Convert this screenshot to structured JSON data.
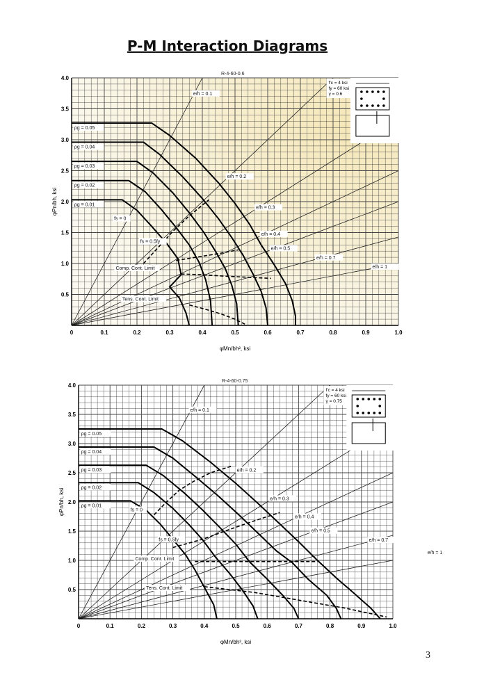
{
  "title": "P-M Interaction Diagrams",
  "page_number": "3",
  "chart_data": [
    {
      "type": "line",
      "title": "R-4-60-0.6",
      "xlabel": "φMn/bh², ksi",
      "ylabel": "φPn/bh, ksi",
      "xlim": [
        0,
        1.0
      ],
      "ylim": [
        0,
        4.0
      ],
      "x_ticks": [
        "0",
        "0.1",
        "0.2",
        "0.3",
        "0.4",
        "0.5",
        "0.6",
        "0.7",
        "0.8",
        "0.9",
        "1.0"
      ],
      "y_ticks": [
        "0.5",
        "1.0",
        "1.5",
        "2.0",
        "2.5",
        "3.0",
        "3.5",
        "4.0"
      ],
      "grid": true,
      "properties": [
        "f'c = 4 ksi",
        "fy = 60 ksi",
        "γ = 0.6"
      ],
      "eccentricity_lines": [
        {
          "label": "e/h = 0.1",
          "ratio": 0.1
        },
        {
          "label": "e/h = 0.2",
          "ratio": 0.2
        },
        {
          "label": "e/h = 0.3",
          "ratio": 0.3
        },
        {
          "label": "e/h = 0.4",
          "ratio": 0.4
        },
        {
          "label": "e/h = 0.5",
          "ratio": 0.5
        },
        {
          "label": "e/h = 0.7",
          "ratio": 0.7
        },
        {
          "label": "e/h = 1",
          "ratio": 1.0
        }
      ],
      "series": [
        {
          "name": "ρg = 0.05",
          "x": [
            0,
            0.245,
            0.3,
            0.38,
            0.45,
            0.5,
            0.545,
            0.58,
            0.62,
            0.655,
            0.675,
            0.685,
            0.685
          ],
          "y": [
            3.27,
            3.27,
            3.07,
            2.7,
            2.3,
            1.97,
            1.63,
            1.3,
            0.98,
            0.67,
            0.4,
            0.15,
            0
          ]
        },
        {
          "name": "ρg = 0.04",
          "x": [
            0,
            0.22,
            0.27,
            0.34,
            0.4,
            0.45,
            0.49,
            0.525,
            0.555,
            0.58,
            0.595,
            0.6
          ],
          "y": [
            2.96,
            2.96,
            2.76,
            2.4,
            2.05,
            1.72,
            1.42,
            1.13,
            0.83,
            0.55,
            0.28,
            0
          ]
        },
        {
          "name": "ρg = 0.03",
          "x": [
            0,
            0.2,
            0.25,
            0.31,
            0.36,
            0.405,
            0.44,
            0.47,
            0.49,
            0.505,
            0.51
          ],
          "y": [
            2.65,
            2.65,
            2.46,
            2.14,
            1.82,
            1.5,
            1.2,
            0.92,
            0.65,
            0.35,
            0
          ]
        },
        {
          "name": "ρg = 0.02",
          "x": [
            0,
            0.175,
            0.225,
            0.275,
            0.32,
            0.36,
            0.39,
            0.41,
            0.425,
            0.43
          ],
          "y": [
            2.34,
            2.34,
            2.16,
            1.87,
            1.58,
            1.3,
            1.02,
            0.74,
            0.4,
            0
          ]
        },
        {
          "name": "ρg = 0.01",
          "x": [
            0,
            0.155,
            0.2,
            0.245,
            0.29,
            0.325,
            0.335,
            0.3,
            0.33,
            0.35,
            0.36
          ],
          "y": [
            2.03,
            2.03,
            1.86,
            1.6,
            1.33,
            1.08,
            0.82,
            0.62,
            0.44,
            0.2,
            0
          ]
        }
      ],
      "dashed_lines": [
        {
          "label": "fs = 0",
          "x": [
            0.22,
            0.265,
            0.31,
            0.36,
            0.42
          ],
          "y": [
            1.0,
            1.26,
            1.52,
            1.77,
            2.03
          ]
        },
        {
          "label": "fs = 0.5fy",
          "x": [
            0.32,
            0.38,
            0.45,
            0.51
          ],
          "y": [
            1.05,
            1.1,
            1.16,
            1.22
          ]
        },
        {
          "label": "Comp. Cont. Limit",
          "x": [
            0.335,
            0.395,
            0.455,
            0.53,
            0.61
          ],
          "y": [
            0.83,
            0.82,
            0.8,
            0.78,
            0.76
          ]
        },
        {
          "label": "Tens. Cont. Limit",
          "x": [
            0.36,
            0.41,
            0.46,
            0.5,
            0.53
          ],
          "y": [
            0.33,
            0.26,
            0.18,
            0.1,
            0.02
          ]
        }
      ],
      "annotations": [
        "fs = 0",
        "fs = 0.5fy",
        "Comp. Cont. Limit",
        "Tens. Cont. Limit"
      ]
    },
    {
      "type": "line",
      "title": "R-4-60-0.75",
      "xlabel": "φMn/bh², ksi",
      "ylabel": "φPn/bh, ksi",
      "xlim": [
        0,
        1.0
      ],
      "ylim": [
        0,
        4.0
      ],
      "x_ticks": [
        "0",
        "0.1",
        "0.2",
        "0.3",
        "0.4",
        "0.5",
        "0.6",
        "0.7",
        "0.8",
        "0.9",
        "1.0"
      ],
      "y_ticks": [
        "0.5",
        "1.0",
        "1.5",
        "2.0",
        "2.5",
        "3.0",
        "3.5",
        "4.0"
      ],
      "grid": true,
      "properties": [
        "f'c = 4 ksi",
        "fy = 60 ksi",
        "γ = 0.75"
      ],
      "eccentricity_lines": [
        {
          "label": "e/h = 0.1",
          "ratio": 0.1
        },
        {
          "label": "e/h = 0.2",
          "ratio": 0.2
        },
        {
          "label": "e/h = 0.3",
          "ratio": 0.3
        },
        {
          "label": "e/h = 0.4",
          "ratio": 0.4
        },
        {
          "label": "e/h = 0.5",
          "ratio": 0.5
        },
        {
          "label": "e/h = 0.7",
          "ratio": 0.7
        },
        {
          "label": "e/h = 1",
          "ratio": 1.0
        }
      ],
      "series": [
        {
          "name": "ρg = 0.05",
          "x": [
            0,
            0.265,
            0.33,
            0.42,
            0.5,
            0.57,
            0.635,
            0.7,
            0.76,
            0.82,
            0.88,
            0.93,
            0.96
          ],
          "y": [
            3.25,
            3.25,
            3.05,
            2.68,
            2.32,
            1.98,
            1.65,
            1.32,
            1.0,
            0.7,
            0.42,
            0.18,
            0
          ]
        },
        {
          "name": "ρg = 0.04",
          "x": [
            0,
            0.24,
            0.3,
            0.375,
            0.445,
            0.51,
            0.57,
            0.63,
            0.68,
            0.73,
            0.79,
            0.82,
            0.835
          ],
          "y": [
            2.94,
            2.94,
            2.75,
            2.42,
            2.1,
            1.78,
            1.47,
            1.16,
            0.96,
            0.68,
            0.4,
            0.18,
            0
          ]
        },
        {
          "name": "ρg = 0.03",
          "x": [
            0,
            0.215,
            0.27,
            0.335,
            0.395,
            0.45,
            0.5,
            0.545,
            0.6,
            0.65,
            0.685,
            0.7
          ],
          "y": [
            2.63,
            2.63,
            2.45,
            2.16,
            1.86,
            1.56,
            1.28,
            0.97,
            0.68,
            0.4,
            0.18,
            0
          ]
        },
        {
          "name": "ρg = 0.02",
          "x": [
            0,
            0.19,
            0.24,
            0.3,
            0.35,
            0.395,
            0.435,
            0.48,
            0.52,
            0.555,
            0.57
          ],
          "y": [
            2.33,
            2.33,
            2.16,
            1.89,
            1.62,
            1.35,
            1.06,
            0.78,
            0.5,
            0.22,
            0
          ]
        },
        {
          "name": "ρg = 0.01",
          "x": [
            0,
            0.165,
            0.215,
            0.26,
            0.3,
            0.34,
            0.37,
            0.4,
            0.43,
            0.44
          ],
          "y": [
            2.02,
            2.02,
            1.86,
            1.62,
            1.36,
            1.1,
            0.84,
            0.54,
            0.24,
            0
          ]
        }
      ],
      "dashed_lines": [
        {
          "label": "fs = 0",
          "x": [
            0.24,
            0.28,
            0.32,
            0.365,
            0.42,
            0.49
          ],
          "y": [
            1.78,
            2.0,
            2.2,
            2.35,
            2.5,
            2.62
          ]
        },
        {
          "label": "fs = 0.5fy",
          "x": [
            0.3,
            0.4,
            0.47,
            0.55,
            0.64
          ],
          "y": [
            1.22,
            1.37,
            1.51,
            1.66,
            1.82
          ]
        },
        {
          "label": "Comp. Cont. Limit",
          "x": [
            0.37,
            0.45,
            0.55,
            0.65,
            0.76
          ],
          "y": [
            0.98,
            0.98,
            0.98,
            0.98,
            0.98
          ]
        },
        {
          "label": "Tens. Cont. Limit",
          "x": [
            0.4,
            0.56,
            0.7,
            0.85,
            0.98
          ],
          "y": [
            0.55,
            0.45,
            0.32,
            0.18,
            0.03
          ]
        }
      ],
      "annotations": [
        "fs = 0",
        "fs = 0.5fy",
        "Comp. Cont. Limit",
        "Tens. Cont. Limit"
      ]
    }
  ]
}
